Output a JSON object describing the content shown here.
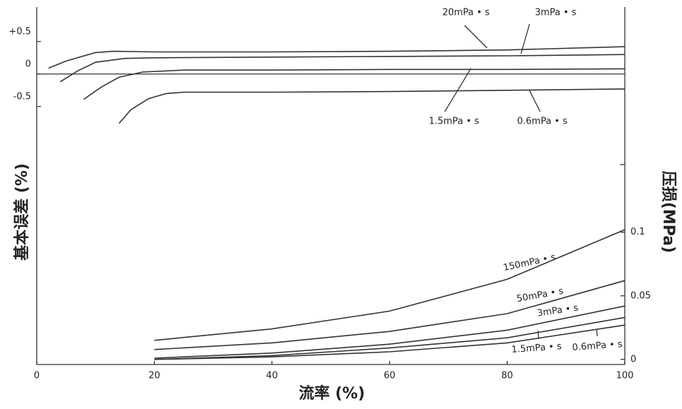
{
  "chart_data": {
    "type": "line",
    "xlabel": "流率 (%)",
    "ylabel": "基本误差 (%)",
    "y2label": "压损(MPa)",
    "xlim": [
      0,
      100
    ],
    "xticks": [
      0,
      20,
      40,
      60,
      80,
      100
    ],
    "ylim": [
      -4.47,
      1.03
    ],
    "yticks": [
      {
        "value": 0.5,
        "label": "+0.5"
      },
      0,
      -0.5
    ],
    "y2lim": [
      -0.004,
      0.277
    ],
    "y2ticks": [
      0,
      0.05,
      0.1
    ],
    "grid": false,
    "series": [
      {
        "name": "20mPa • s",
        "color": "#333",
        "x": [
          2,
          5,
          10,
          13,
          20,
          40,
          60,
          80,
          100
        ],
        "values": [
          0.09,
          0.2,
          0.33,
          0.35,
          0.34,
          0.34,
          0.35,
          0.37,
          0.42
        ]
      },
      {
        "name": "3mPa • s",
        "color": "#333",
        "x": [
          4,
          7,
          10,
          15,
          20,
          40,
          60,
          80,
          100
        ],
        "values": [
          -0.12,
          0.05,
          0.18,
          0.24,
          0.25,
          0.26,
          0.27,
          0.28,
          0.3
        ]
      },
      {
        "name": "1.5mPa • s",
        "color": "#333",
        "x": [
          8,
          11,
          14,
          18,
          25,
          40,
          60,
          80,
          100
        ],
        "values": [
          -0.39,
          -0.2,
          -0.05,
          0.03,
          0.06,
          0.06,
          0.07,
          0.07,
          0.08
        ]
      },
      {
        "name": "0.6mPa • s",
        "color": "#333",
        "x": [
          14,
          16,
          19,
          22,
          25,
          40,
          60,
          80,
          100
        ],
        "values": [
          -0.76,
          -0.55,
          -0.38,
          -0.3,
          -0.28,
          -0.28,
          -0.27,
          -0.25,
          -0.23
        ]
      },
      {
        "name": "150mPa • s",
        "color": "#333",
        "axis": "y2",
        "x": [
          20,
          40,
          60,
          80,
          100
        ],
        "values": [
          0.015,
          0.024,
          0.038,
          0.063,
          0.102
        ]
      },
      {
        "name": "50mPa • s",
        "color": "#333",
        "axis": "y2",
        "x": [
          20,
          40,
          60,
          80,
          100
        ],
        "values": [
          0.0078,
          0.013,
          0.022,
          0.036,
          0.062
        ]
      },
      {
        "name": "3mPa • s",
        "color": "#333",
        "axis": "y2",
        "x": [
          20,
          40,
          60,
          80,
          100
        ],
        "values": [
          0.001,
          0.005,
          0.012,
          0.023,
          0.042
        ]
      },
      {
        "name": "1.5mPa • s",
        "color": "#333",
        "axis": "y2",
        "x": [
          20,
          40,
          60,
          80,
          100
        ],
        "values": [
          0.0,
          0.003,
          0.009,
          0.017,
          0.033
        ]
      },
      {
        "name": "0.6mPa • s",
        "color": "#333",
        "axis": "y2",
        "x": [
          20,
          40,
          60,
          80,
          100
        ],
        "values": [
          0.0,
          0.002,
          0.006,
          0.013,
          0.027
        ]
      }
    ]
  }
}
